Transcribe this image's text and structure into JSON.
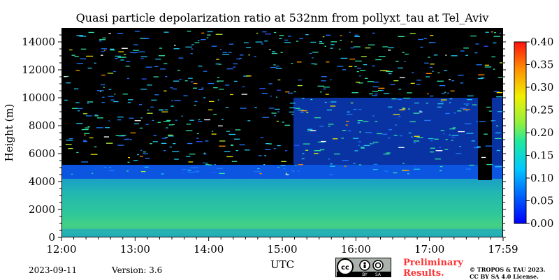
{
  "chart_data": {
    "type": "heatmap",
    "title": "Quasi particle depolarization ratio at 532nm from pollyxt_tau at Tel_Aviv",
    "xlabel": "UTC",
    "ylabel": "Height (m)",
    "x_ticks": [
      "12:00",
      "13:00",
      "14:00",
      "15:00",
      "16:00",
      "17:00",
      "17:59"
    ],
    "y_ticks": [
      "0",
      "2000",
      "4000",
      "6000",
      "8000",
      "10000",
      "12000",
      "14000"
    ],
    "xlim": [
      "12:00",
      "17:59"
    ],
    "ylim": [
      0,
      15000
    ],
    "colorbar": {
      "range": [
        0.0,
        0.4
      ],
      "ticks": [
        "0.00",
        "0.05",
        "0.10",
        "0.15",
        "0.20",
        "0.25",
        "0.30",
        "0.35",
        "0.40"
      ]
    },
    "layers": [
      {
        "height_range_m": [
          0,
          1000
        ],
        "depol_ratio": 0.12
      },
      {
        "height_range_m": [
          1000,
          4000
        ],
        "depol_ratio": 0.11
      },
      {
        "height_range_m": [
          4000,
          6000
        ],
        "depol_ratio": 0.04
      }
    ]
  },
  "footer": {
    "date": "2023-09-11",
    "version": "Version: 3.6",
    "preliminary": [
      "Preliminary",
      "Results."
    ],
    "copyright": [
      "© TROPOS & TAU 2023.",
      "CC BY SA 4.0 License."
    ],
    "license_labels": [
      "cc",
      "BY",
      "SA"
    ]
  }
}
